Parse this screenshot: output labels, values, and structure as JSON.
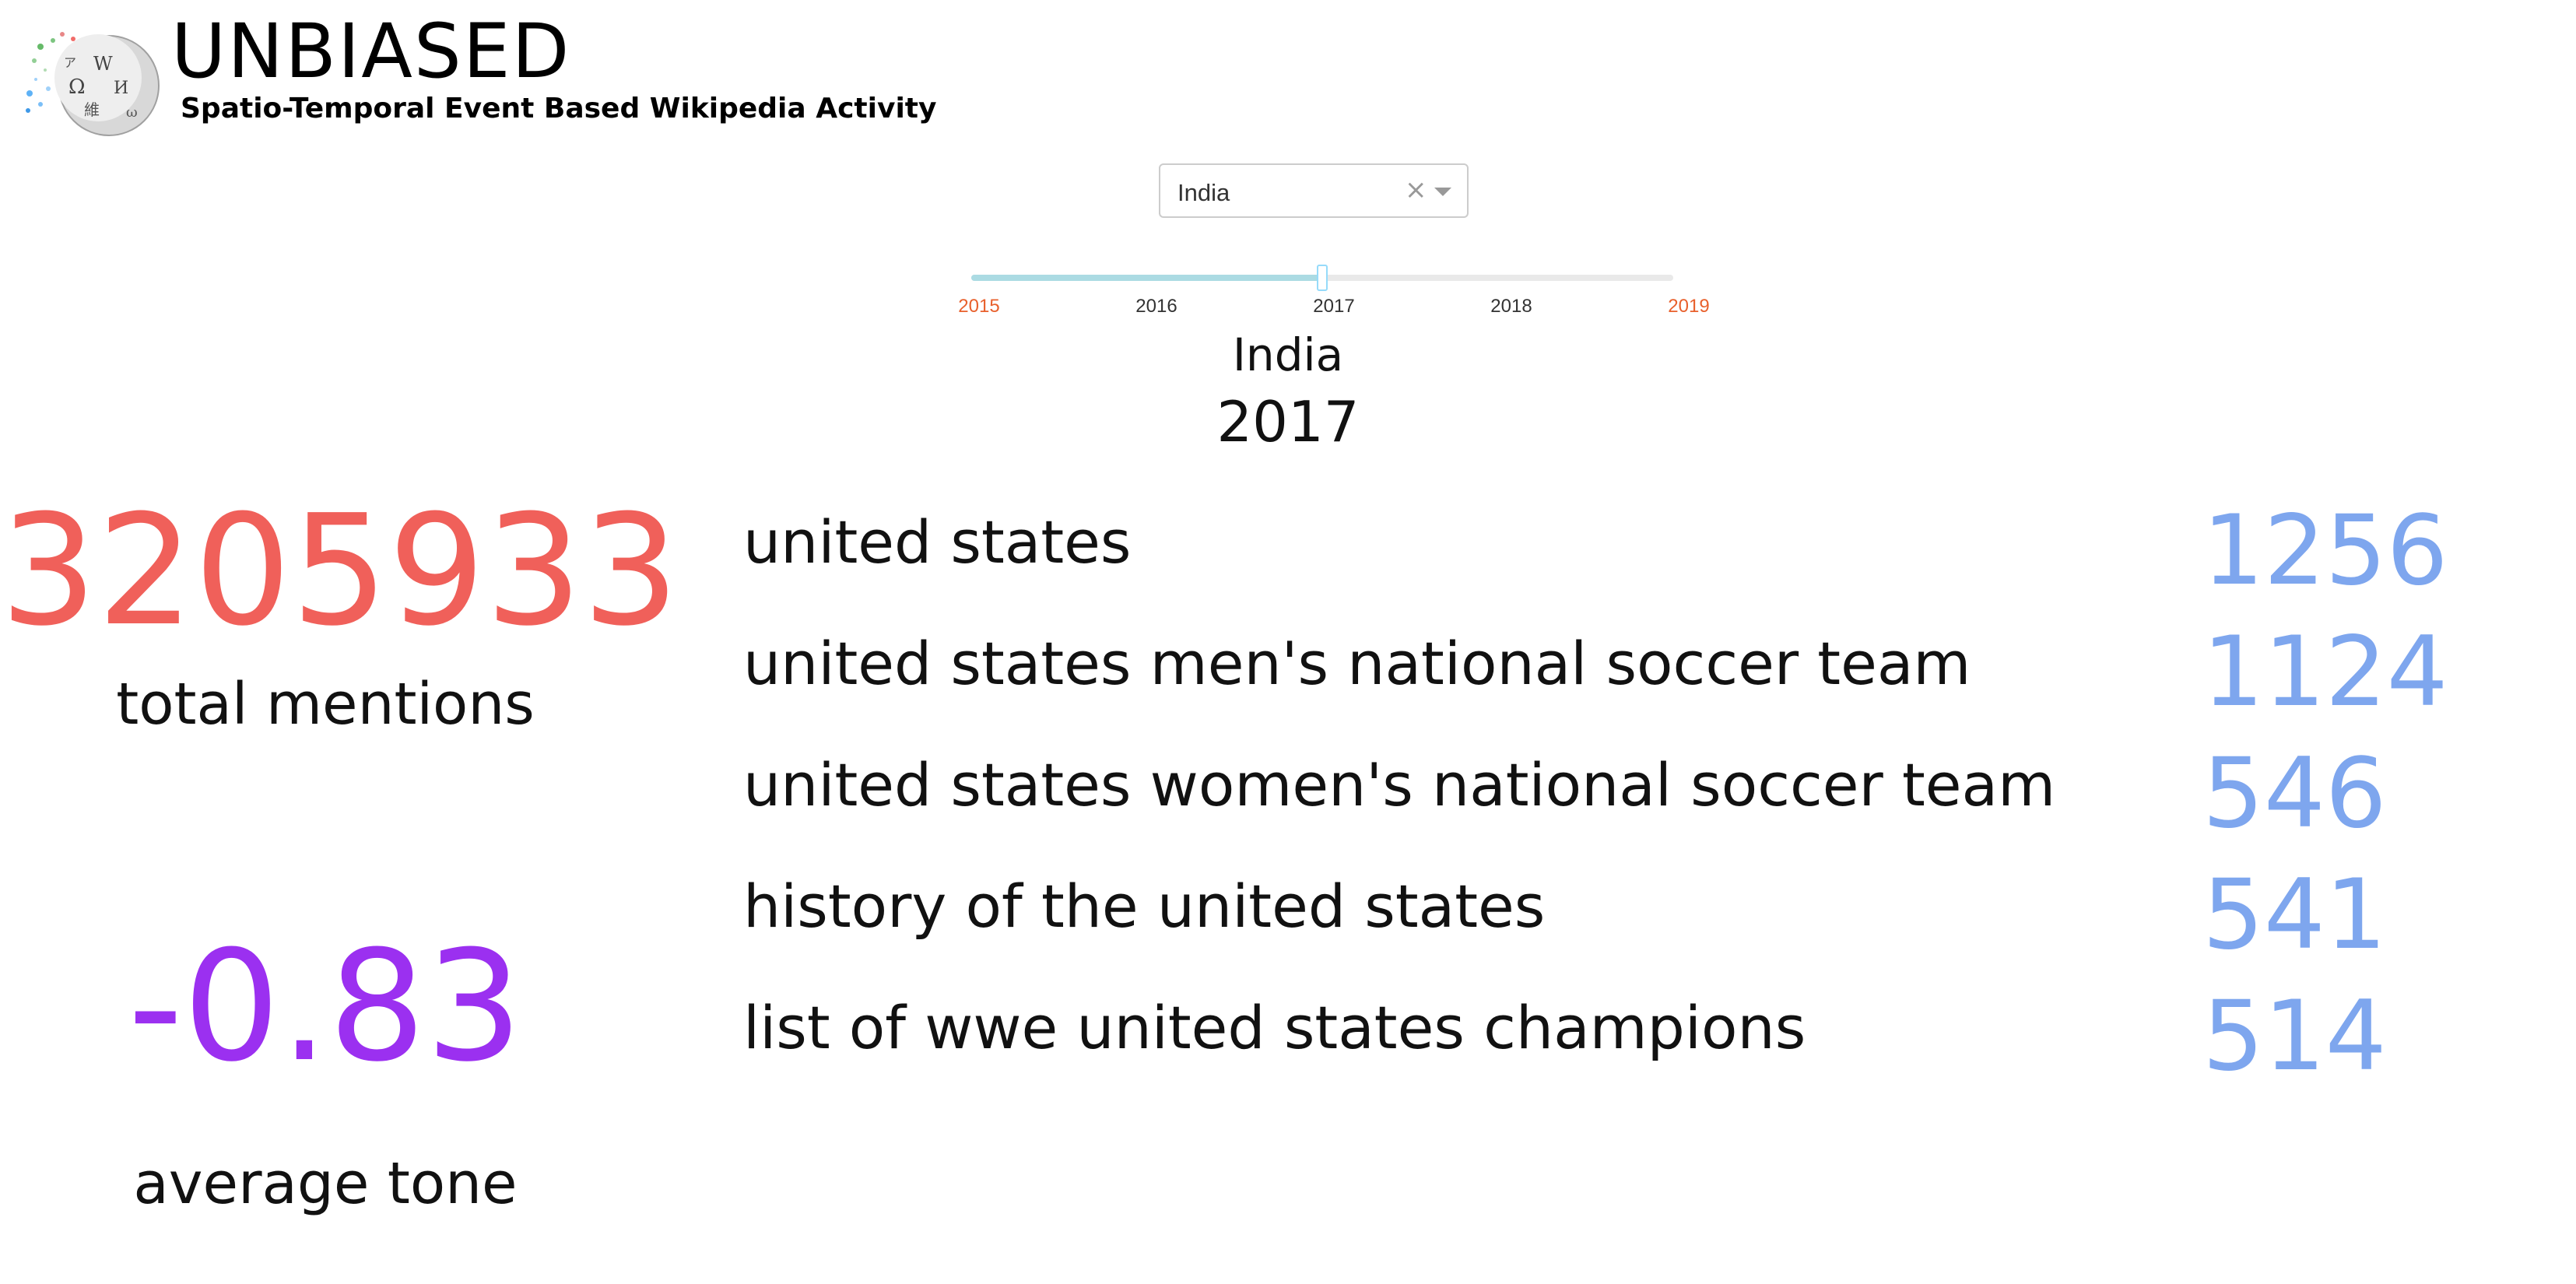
{
  "header": {
    "title": "UNBIASED",
    "subtitle": "Spatio-Temporal Event Based Wikipedia Activity",
    "logo_icon": "wikipedia-globe-icon"
  },
  "country_select": {
    "value": "India",
    "clear_symbol": "×"
  },
  "year_slider": {
    "ticks": [
      "2015",
      "2016",
      "2017",
      "2018",
      "2019"
    ],
    "selected": "2017",
    "selected_fraction": 0.5,
    "track_color": "#abdbe3",
    "edge_tick_color": "#e8602c"
  },
  "selection": {
    "country": "India",
    "year": "2017"
  },
  "stats": {
    "total_mentions": {
      "value": "3205933",
      "label": "total mentions",
      "color": "#f0605a"
    },
    "average_tone": {
      "value": "-0.83",
      "label": "average tone",
      "color": "#9b30f0"
    }
  },
  "articles": [
    {
      "title": "united states",
      "count": "1256"
    },
    {
      "title": "united states men's national soccer team",
      "count": "1124"
    },
    {
      "title": "united states women's national soccer team",
      "count": "546"
    },
    {
      "title": "history of the united states",
      "count": "541"
    },
    {
      "title": "list of wwe united states champions",
      "count": "514"
    }
  ],
  "colors": {
    "count": "#7ea6ee"
  }
}
